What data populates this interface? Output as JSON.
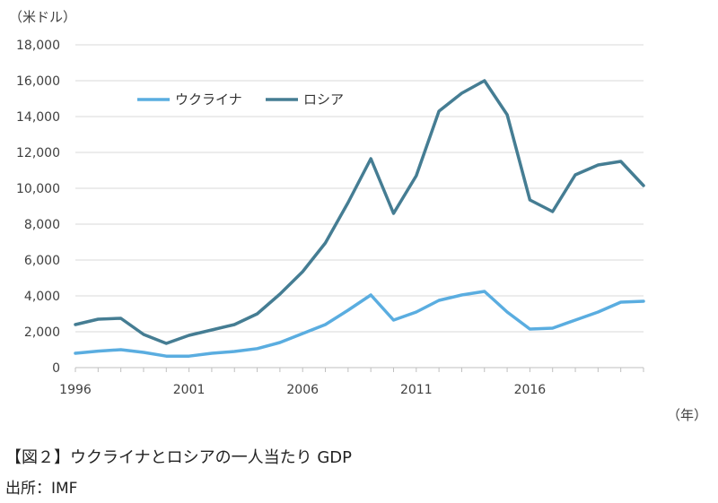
{
  "figure": {
    "y_unit": "（米ドル）",
    "x_unit": "（年）",
    "caption": "【図２】ウクライナとロシアの一人当たり GDP",
    "source": "出所：IMF"
  },
  "chart_data": {
    "type": "line",
    "title": "",
    "xlabel": "",
    "ylabel": "",
    "x": [
      1996,
      1997,
      1998,
      1999,
      2000,
      2001,
      2002,
      2003,
      2004,
      2005,
      2006,
      2007,
      2008,
      2009,
      2010,
      2011,
      2012,
      2013,
      2014,
      2015,
      2016,
      2017,
      2018,
      2019,
      2020,
      2021
    ],
    "x_ticks": [
      "1996",
      "2001",
      "2006",
      "2011",
      "2016"
    ],
    "x_tick_values": [
      1996,
      2001,
      2006,
      2011,
      2016
    ],
    "y_ticks": [
      "0",
      "2,000",
      "4,000",
      "6,000",
      "8,000",
      "10,000",
      "12,000",
      "14,000",
      "16,000",
      "18,000"
    ],
    "y_tick_values": [
      0,
      2000,
      4000,
      6000,
      8000,
      10000,
      12000,
      14000,
      16000,
      18000
    ],
    "xlim": [
      1996,
      2021
    ],
    "ylim": [
      0,
      18000
    ],
    "grid": true,
    "legend_position": "upper-left",
    "series": [
      {
        "name": "ウクライナ",
        "color": "#5aade0",
        "values": [
          800,
          920,
          1000,
          850,
          640,
          640,
          800,
          900,
          1060,
          1400,
          1900,
          2400,
          3200,
          4050,
          2650,
          3100,
          3750,
          4050,
          4250,
          3100,
          2150,
          2200,
          2650,
          3100,
          3650,
          3700
        ]
      },
      {
        "name": "ロシア",
        "color": "#457d93",
        "values": [
          2400,
          2700,
          2750,
          1850,
          1350,
          1800,
          2100,
          2400,
          3000,
          4100,
          5350,
          6950,
          9200,
          11650,
          8600,
          10700,
          14300,
          15300,
          16000,
          14100,
          9350,
          8700,
          10750,
          11300,
          11500,
          10150
        ]
      }
    ]
  }
}
